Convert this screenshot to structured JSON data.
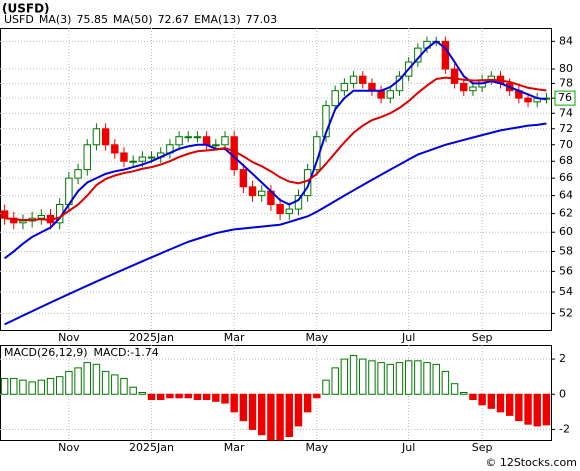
{
  "chart_data": [
    {
      "type": "candlestick",
      "title": "(USFD)",
      "symbol": "USFD",
      "categories": [
        null,
        null,
        null,
        null,
        null,
        null,
        null,
        "Nov",
        null,
        null,
        null,
        null,
        null,
        null,
        null,
        null,
        "2025Jan",
        null,
        null,
        null,
        null,
        null,
        null,
        null,
        null,
        "Mar",
        null,
        null,
        null,
        null,
        null,
        null,
        null,
        null,
        "May",
        null,
        null,
        null,
        null,
        null,
        null,
        null,
        null,
        null,
        "Jul",
        null,
        null,
        null,
        null,
        null,
        null,
        null,
        "Sep",
        null,
        null,
        null,
        null,
        null,
        null,
        null
      ],
      "open": [
        62.3,
        61.5,
        61,
        61.2,
        61.5,
        61.8,
        61,
        63,
        66,
        67,
        70,
        72,
        70,
        69,
        68,
        68,
        68.5,
        68.5,
        69,
        70,
        71,
        71,
        71,
        70,
        70,
        71,
        67,
        65,
        64,
        64.5,
        63,
        62,
        62.5,
        64,
        67,
        71,
        75,
        77,
        78,
        79,
        78,
        77,
        76,
        77,
        79,
        81,
        83,
        84,
        84,
        80,
        78,
        77,
        77.5,
        78.5,
        79,
        78,
        77,
        76,
        75.5,
        76
      ],
      "high": [
        63,
        62.2,
        61.9,
        62.2,
        62.5,
        62.5,
        63.7,
        66.7,
        67.7,
        70.7,
        72.7,
        72.7,
        70.7,
        69.7,
        68.7,
        69.2,
        69.2,
        69.7,
        70.7,
        71.7,
        71.7,
        71.7,
        71.7,
        70.7,
        71.7,
        71.7,
        67.7,
        65.7,
        65.2,
        65.2,
        63.7,
        63.2,
        64.7,
        67.7,
        71.7,
        75.7,
        77.7,
        78.7,
        79.7,
        79.7,
        78.7,
        77.7,
        77.7,
        79.7,
        81.7,
        83.7,
        84.7,
        84.7,
        84.7,
        80.7,
        78.7,
        78.2,
        79.2,
        79.7,
        79.7,
        78.7,
        77.7,
        76.7,
        76.7,
        76.7
      ],
      "low": [
        60.8,
        60.3,
        60.3,
        60.5,
        60.8,
        60.3,
        60.3,
        62.3,
        65.3,
        66.3,
        69.3,
        69.3,
        68.3,
        67.3,
        67.3,
        67.3,
        67.8,
        67.8,
        68.3,
        69.3,
        70.3,
        70.3,
        69.3,
        69.3,
        69.3,
        66.3,
        64.3,
        63.3,
        63.3,
        62.3,
        61.3,
        61.3,
        61.8,
        63.3,
        66.3,
        70.3,
        74.3,
        76.3,
        77.3,
        77.3,
        76.3,
        75.3,
        75.3,
        76.3,
        78.3,
        80.3,
        82.3,
        83.3,
        79.3,
        77.3,
        76.3,
        76.3,
        76.8,
        77.8,
        77.3,
        76.3,
        75.3,
        74.8,
        74.8,
        75.3
      ],
      "close": [
        61.5,
        61,
        61.2,
        61.5,
        61.8,
        61,
        63,
        66,
        67,
        70,
        72,
        70,
        69,
        68,
        68,
        68.5,
        68.5,
        69,
        70,
        71,
        71,
        71,
        70,
        70,
        71,
        67,
        65,
        64,
        64.5,
        63,
        62,
        62.5,
        64,
        67,
        71,
        75,
        77,
        78,
        79,
        78,
        77,
        76,
        77,
        79,
        81,
        83,
        84,
        84,
        80,
        78,
        77,
        77.5,
        78.5,
        79,
        78,
        77,
        76,
        75.5,
        76,
        76
      ],
      "series": [
        {
          "name": "MA(3)",
          "last": 75.85,
          "color": "#0000dd",
          "values": [
            57.3,
            58,
            58.8,
            59.5,
            60,
            60.5,
            61.5,
            63,
            64.5,
            65.5,
            66,
            66.5,
            66.8,
            67,
            67.3,
            67.6,
            68,
            68.5,
            69,
            69.5,
            69.8,
            70,
            70,
            69.5,
            69.5,
            68.5,
            67.5,
            66.5,
            65.5,
            64.5,
            63.5,
            63,
            63.5,
            65,
            68,
            71.5,
            74.5,
            76,
            77,
            77,
            77,
            77,
            77.5,
            78.5,
            80,
            81.5,
            83,
            84,
            83,
            81,
            79,
            78,
            78,
            78.3,
            78,
            77.5,
            77,
            76.5,
            76,
            75.85
          ]
        },
        {
          "name": "MA(50)",
          "last": 72.67,
          "color": "#0000dd",
          "values": [
            51,
            51.4,
            51.8,
            52.2,
            52.6,
            53,
            53.4,
            53.8,
            54.2,
            54.6,
            55,
            55.4,
            55.8,
            56.2,
            56.6,
            57,
            57.4,
            57.8,
            58.2,
            58.6,
            59,
            59.3,
            59.6,
            59.9,
            60.1,
            60.3,
            60.4,
            60.5,
            60.6,
            60.7,
            60.8,
            61.1,
            61.4,
            61.7,
            62.2,
            62.8,
            63.4,
            64,
            64.6,
            65.2,
            65.8,
            66.4,
            67,
            67.6,
            68.2,
            68.8,
            69.2,
            69.6,
            70,
            70.3,
            70.6,
            70.9,
            71.2,
            71.5,
            71.8,
            72,
            72.2,
            72.4,
            72.5,
            72.67
          ]
        },
        {
          "name": "EMA(13)",
          "last": 77.03,
          "color": "#dd0000",
          "values": [
            61.5,
            61.4,
            61.3,
            61.3,
            61.4,
            61.3,
            61.6,
            62.3,
            63,
            64,
            65.2,
            65.9,
            66.3,
            66.6,
            66.8,
            67.1,
            67.3,
            67.6,
            68,
            68.5,
            68.9,
            69.2,
            69.3,
            69.4,
            69.6,
            69.2,
            68.6,
            67.9,
            67.4,
            66.8,
            66.1,
            65.6,
            65.4,
            65.7,
            66.5,
            67.7,
            69,
            70.3,
            71.5,
            72.4,
            73.1,
            73.5,
            74,
            74.7,
            75.6,
            76.7,
            77.7,
            78.6,
            78.8,
            78.7,
            78.5,
            78.4,
            78.4,
            78.5,
            78.4,
            78.2,
            77.8,
            77.4,
            77.2,
            77.03
          ]
        }
      ],
      "up_color": "#007700",
      "down_color": "#ee0000",
      "log_scale": true,
      "ylim": [
        50.5,
        86
      ],
      "yticks": [
        52,
        54,
        56,
        58,
        60,
        62,
        64,
        66,
        68,
        70,
        72,
        74,
        76,
        78,
        80,
        84
      ],
      "price_marker": 76,
      "grid": true
    },
    {
      "type": "bar",
      "name": "MACD(26,12,9)",
      "label": "MACD:-1.74",
      "values": [
        0.9,
        0.9,
        0.8,
        0.7,
        0.8,
        0.9,
        1.0,
        1.3,
        1.5,
        1.8,
        1.7,
        1.3,
        1.1,
        0.9,
        0.4,
        0.1,
        -0.3,
        -0.3,
        -0.2,
        -0.2,
        -0.2,
        -0.3,
        -0.3,
        -0.4,
        -0.5,
        -1.0,
        -1.5,
        -2.0,
        -2.3,
        -2.6,
        -2.6,
        -2.4,
        -1.8,
        -1.0,
        -0.2,
        0.8,
        1.5,
        2.0,
        2.2,
        2.0,
        1.9,
        1.8,
        1.7,
        1.8,
        1.9,
        1.9,
        1.8,
        1.7,
        1.3,
        0.6,
        0.1,
        -0.3,
        -0.6,
        -0.8,
        -1.0,
        -1.2,
        -1.5,
        -1.7,
        -1.8,
        -1.74
      ],
      "up_color": "#007700",
      "down_color": "#ee0000",
      "ylim": [
        -2.6,
        2.8
      ],
      "yticks": [
        -2,
        0,
        2
      ],
      "grid": true
    }
  ],
  "footer": "© 12Stocks.com"
}
